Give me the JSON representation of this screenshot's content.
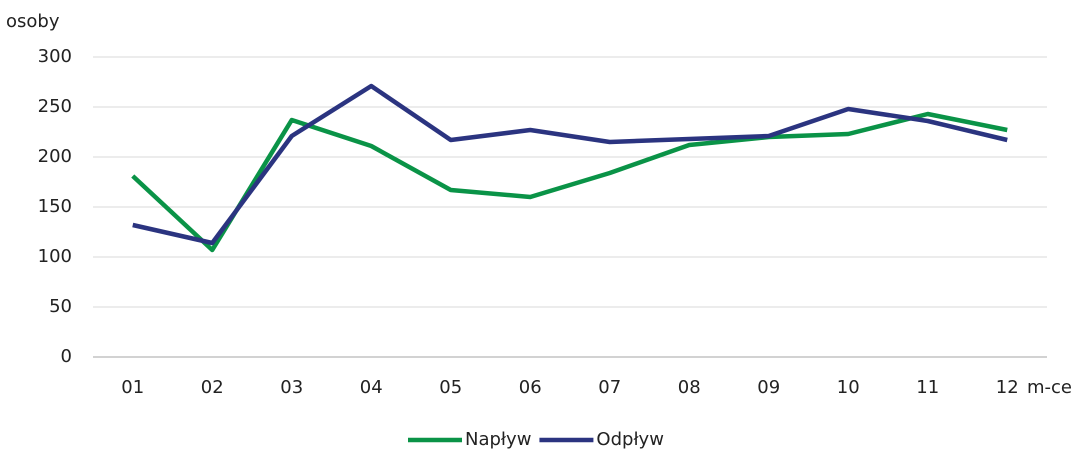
{
  "chart_data": {
    "type": "line",
    "y_label": "osoby",
    "x_label": "m-ce",
    "categories": [
      "01",
      "02",
      "03",
      "04",
      "05",
      "06",
      "07",
      "08",
      "09",
      "10",
      "11",
      "12"
    ],
    "series": [
      {
        "name": "Napływ",
        "color": "#0a9347",
        "values": [
          181,
          107,
          237,
          211,
          167,
          160,
          184,
          212,
          220,
          223,
          243,
          227
        ]
      },
      {
        "name": "Odpływ",
        "color": "#2b3480",
        "values": [
          132,
          114,
          221,
          271,
          217,
          227,
          215,
          218,
          221,
          248,
          236,
          217
        ]
      }
    ],
    "ylim": [
      0,
      300
    ],
    "yticks": [
      0,
      50,
      100,
      150,
      200,
      250,
      300
    ],
    "grid": true,
    "legend": "bottom"
  }
}
